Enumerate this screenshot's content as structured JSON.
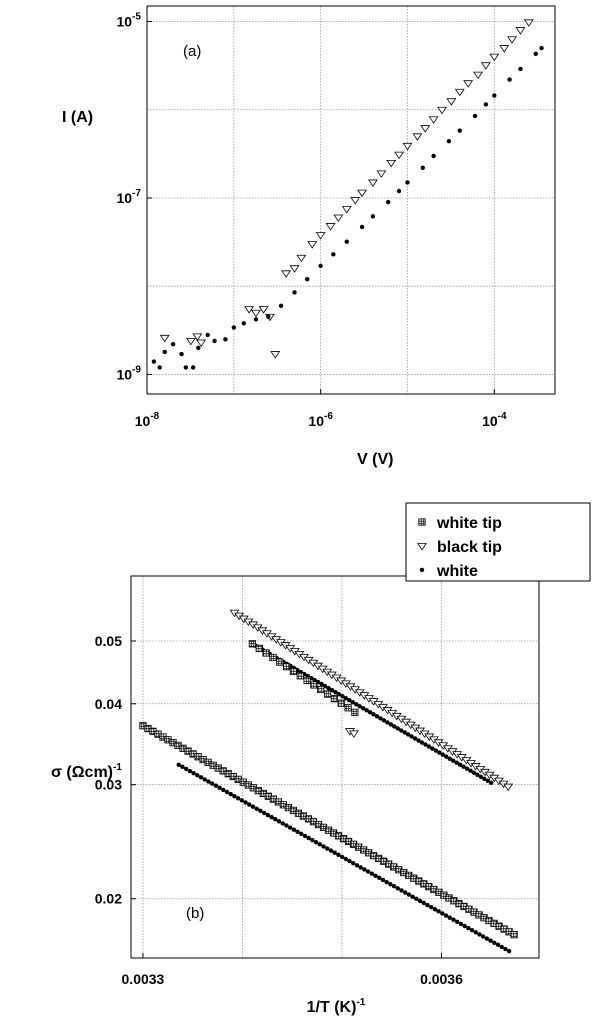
{
  "chart_data": [
    {
      "type": "scatter",
      "panel_label": "(a)",
      "xlabel": "V (V)",
      "ylabel": "I (A)",
      "xscale": "log",
      "yscale": "log",
      "xlim": [
        1e-08,
        0.0005
      ],
      "ylim": [
        6e-10,
        1.5e-05
      ],
      "grid": true,
      "x_ticks": [
        {
          "base": "10",
          "exp": "-8",
          "value": 1e-08
        },
        {
          "base": "10",
          "exp": "-6",
          "value": 1e-06
        },
        {
          "base": "10",
          "exp": "-4",
          "value": 0.0001
        }
      ],
      "y_ticks": [
        {
          "base": "10",
          "exp": "-9",
          "value": 1e-09
        },
        {
          "base": "10",
          "exp": "-7",
          "value": 1e-07
        },
        {
          "base": "10",
          "exp": "-5",
          "value": 1e-05
        }
      ],
      "series": [
        {
          "marker": "triangle-down-open",
          "points": [
            [
              1.6e-08,
              2.6e-09
            ],
            [
              3.2e-08,
              2.4e-09
            ],
            [
              3.8e-08,
              2.7e-09
            ],
            [
              4.2e-08,
              2.3e-09
            ],
            [
              1.5e-07,
              5.5e-09
            ],
            [
              1.8e-07,
              5e-09
            ],
            [
              2.2e-07,
              5.5e-09
            ],
            [
              2.6e-07,
              4.5e-09
            ],
            [
              3e-07,
              1.7e-09
            ],
            [
              4e-07,
              1.4e-08
            ],
            [
              5e-07,
              1.6e-08
            ],
            [
              6e-07,
              2.1e-08
            ],
            [
              8e-07,
              3e-08
            ],
            [
              1e-06,
              3.8e-08
            ],
            [
              1.3e-06,
              4.8e-08
            ],
            [
              1.6e-06,
              6e-08
            ],
            [
              2e-06,
              7.5e-08
            ],
            [
              2.5e-06,
              9.5e-08
            ],
            [
              3e-06,
              1.15e-07
            ],
            [
              4e-06,
              1.5e-07
            ],
            [
              5e-06,
              1.9e-07
            ],
            [
              6.5e-06,
              2.5e-07
            ],
            [
              8e-06,
              3.1e-07
            ],
            [
              1e-05,
              3.9e-07
            ],
            [
              1.3e-05,
              5e-07
            ],
            [
              1.6e-05,
              6.2e-07
            ],
            [
              2e-05,
              7.8e-07
            ],
            [
              2.5e-05,
              1e-06
            ],
            [
              3.2e-05,
              1.25e-06
            ],
            [
              4e-05,
              1.6e-06
            ],
            [
              5e-05,
              2e-06
            ],
            [
              6.5e-05,
              2.5e-06
            ],
            [
              8e-05,
              3.2e-06
            ],
            [
              0.0001,
              4e-06
            ],
            [
              0.00013,
              5e-06
            ],
            [
              0.00016,
              6.3e-06
            ],
            [
              0.0002,
              8e-06
            ],
            [
              0.00025,
              9.8e-06
            ]
          ]
        },
        {
          "marker": "circle-filled",
          "points": [
            [
              1.2e-08,
              1.4e-09
            ],
            [
              1.4e-08,
              1.2e-09
            ],
            [
              1.6e-08,
              1.8e-09
            ],
            [
              2e-08,
              2.2e-09
            ],
            [
              2.5e-08,
              1.7e-09
            ],
            [
              2.8e-08,
              1.2e-09
            ],
            [
              3.4e-08,
              1.2e-09
            ],
            [
              3.9e-08,
              2e-09
            ],
            [
              5e-08,
              2.8e-09
            ],
            [
              6e-08,
              2.4e-09
            ],
            [
              8e-08,
              2.5e-09
            ],
            [
              1e-07,
              3.4e-09
            ],
            [
              1.3e-07,
              3.8e-09
            ],
            [
              1.8e-07,
              4.2e-09
            ],
            [
              2.5e-07,
              4.5e-09
            ],
            [
              3.5e-07,
              6e-09
            ],
            [
              5e-07,
              8.5e-09
            ],
            [
              7e-07,
              1.2e-08
            ],
            [
              1e-06,
              1.7e-08
            ],
            [
              1.4e-06,
              2.3e-08
            ],
            [
              2e-06,
              3.2e-08
            ],
            [
              3e-06,
              4.7e-08
            ],
            [
              4e-06,
              6.2e-08
            ],
            [
              6e-06,
              9e-08
            ],
            [
              8e-06,
              1.2e-07
            ],
            [
              1e-05,
              1.5e-07
            ],
            [
              1.5e-05,
              2.2e-07
            ],
            [
              2e-05,
              3e-07
            ],
            [
              3e-05,
              4.4e-07
            ],
            [
              4e-05,
              5.8e-07
            ],
            [
              6e-05,
              8.5e-07
            ],
            [
              8e-05,
              1.15e-06
            ],
            [
              0.0001,
              1.45e-06
            ],
            [
              0.00015,
              2.2e-06
            ],
            [
              0.0002,
              2.9e-06
            ],
            [
              0.0003,
              4.3e-06
            ],
            [
              0.00035,
              5e-06
            ]
          ]
        }
      ]
    },
    {
      "type": "scatter",
      "panel_label": "(b)",
      "xlabel": "1/T (K)",
      "xlabel_sup": "-1",
      "ylabel": "σ (Ωcm)",
      "ylabel_sup": "-1",
      "yscale": "log",
      "xlim": [
        0.003288,
        0.003698
      ],
      "ylim": [
        0.0162,
        0.063
      ],
      "grid": true,
      "x_ticks": [
        {
          "label": "0.0033",
          "value": 0.0033
        },
        {
          "label": "0.0036",
          "value": 0.0036
        }
      ],
      "y_ticks": [
        {
          "label": "0.02",
          "value": 0.02
        },
        {
          "label": "0.03",
          "value": 0.03
        },
        {
          "label": "0.04",
          "value": 0.04
        },
        {
          "label": "0.05",
          "value": 0.05
        }
      ],
      "legend_position": "top-right",
      "series": [
        {
          "name": "white tip",
          "marker": "square-hatched",
          "lines": [
            {
              "x_start": 0.0033,
              "y_start": 0.037,
              "x_end": 0.003673,
              "y_end": 0.0176,
              "count": 75
            },
            {
              "x_start": 0.00341,
              "y_start": 0.0495,
              "x_end": 0.003513,
              "y_end": 0.0388,
              "count": 16
            }
          ]
        },
        {
          "name": "black tip",
          "marker": "triangle-down-open",
          "lines": [
            {
              "x_start": 0.003392,
              "y_start": 0.0553,
              "x_end": 0.003667,
              "y_end": 0.0298,
              "count": 60
            },
            {
              "x_start": 0.003508,
              "y_start": 0.0363,
              "x_end": 0.003512,
              "y_end": 0.036,
              "count": 2
            }
          ]
        },
        {
          "name": "white",
          "marker": "circle-filled",
          "lines": [
            {
              "x_start": 0.003336,
              "y_start": 0.0322,
              "x_end": 0.003668,
              "y_end": 0.0166,
              "count": 90
            },
            {
              "x_start": 0.00341,
              "y_start": 0.0495,
              "x_end": 0.00365,
              "y_end": 0.0302,
              "count": 70
            }
          ]
        }
      ]
    }
  ]
}
